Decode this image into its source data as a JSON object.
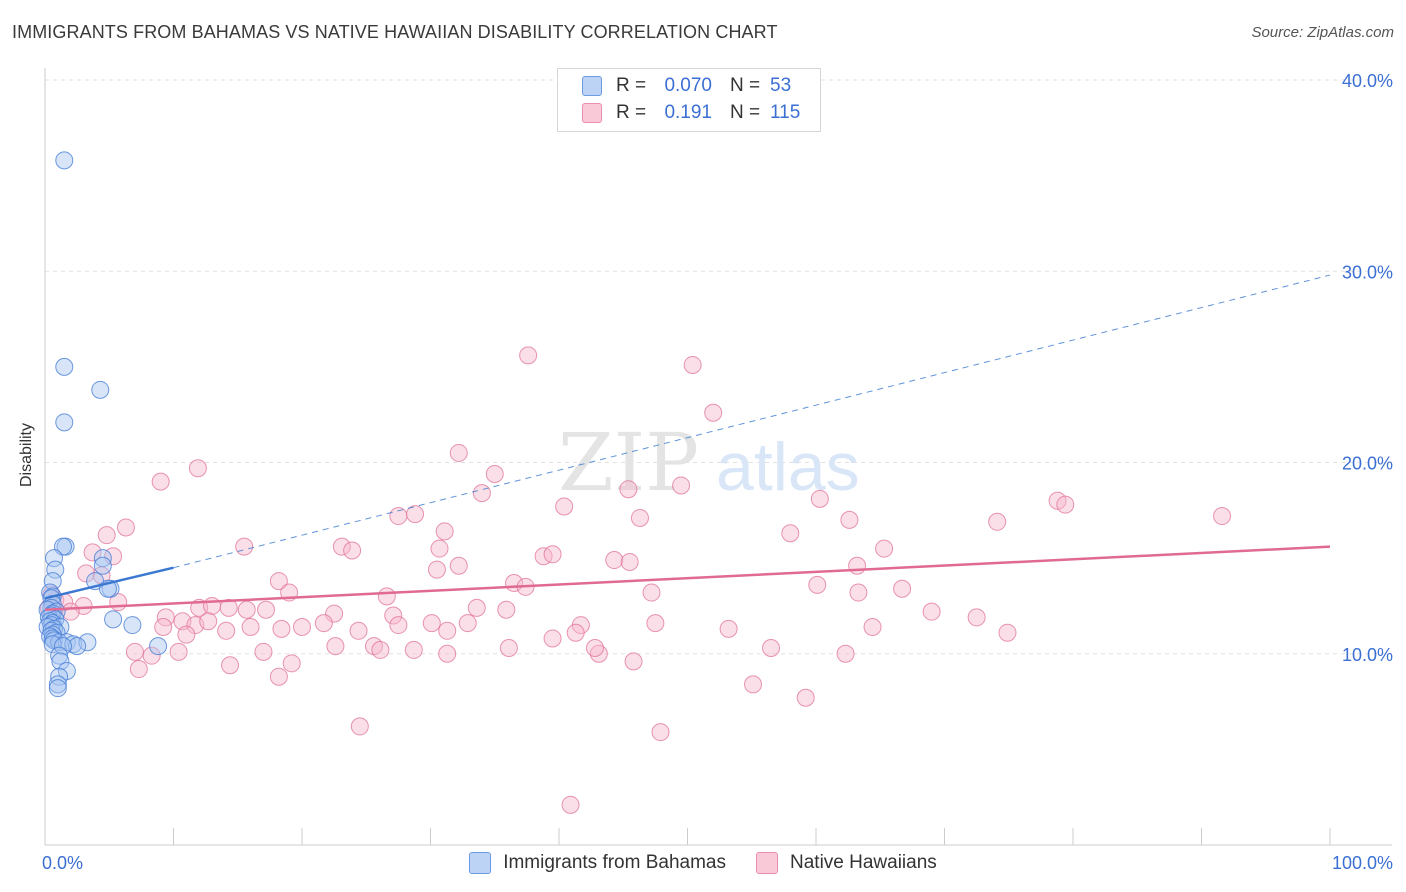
{
  "header": {
    "title": "IMMIGRANTS FROM BAHAMAS VS NATIVE HAWAIIAN DISABILITY CORRELATION CHART",
    "source": "Source: ZipAtlas.com"
  },
  "watermark": {
    "zip": "ZIP",
    "atlas": "atlas"
  },
  "legend": {
    "rows": [
      {
        "r_label": "R =",
        "r_value": "0.070",
        "n_label": "N =",
        "n_value": "53",
        "color": "#a9c6f2"
      },
      {
        "r_label": "R =",
        "r_value": "0.191",
        "n_label": "N =",
        "n_value": "115",
        "color": "#f7b8cb"
      }
    ]
  },
  "bottom_legend": {
    "series_a": "Immigrants from Bahamas",
    "series_b": "Native Hawaiians"
  },
  "chart_data": {
    "type": "scatter",
    "title": "IMMIGRANTS FROM BAHAMAS VS NATIVE HAWAIIAN DISABILITY CORRELATION CHART",
    "xlabel": "",
    "ylabel": "Disability",
    "xlim": [
      0,
      100
    ],
    "ylim": [
      0,
      40
    ],
    "x_tick_labels": [
      "0.0%",
      "100.0%"
    ],
    "y_ticks": [
      10,
      20,
      30,
      40
    ],
    "y_tick_labels": [
      "10.0%",
      "20.0%",
      "30.0%",
      "40.0%"
    ],
    "grid": true,
    "colors": {
      "bahamas_fill": "#a9c6f2",
      "bahamas_stroke": "#4a7fd6",
      "bahamas_line": "#3a78d1",
      "hawaiian_fill": "#f7b8cb",
      "hawaiian_stroke": "#e0729a",
      "hawaiian_line": "#e06a93",
      "axis_label": "#3b6fd4"
    },
    "series": [
      {
        "name": "Immigrants from Bahamas",
        "trend": {
          "x0": 0.0,
          "y0": 12.9,
          "x1": 10.0,
          "y1": 14.5,
          "dashed_to_x": 100.0,
          "dashed_to_y": 29.8
        },
        "points": [
          [
            1.5,
            35.8
          ],
          [
            1.5,
            25.0
          ],
          [
            1.5,
            22.1
          ],
          [
            4.3,
            23.8
          ],
          [
            1.6,
            15.6
          ],
          [
            1.4,
            15.6
          ],
          [
            0.7,
            15.0
          ],
          [
            4.5,
            15.0
          ],
          [
            0.8,
            14.4
          ],
          [
            4.5,
            14.6
          ],
          [
            0.6,
            13.8
          ],
          [
            3.9,
            13.8
          ],
          [
            5.1,
            13.4
          ],
          [
            4.9,
            13.4
          ],
          [
            0.4,
            13.2
          ],
          [
            0.6,
            13.0
          ],
          [
            0.5,
            12.9
          ],
          [
            0.6,
            12.6
          ],
          [
            0.5,
            12.4
          ],
          [
            0.2,
            12.3
          ],
          [
            0.9,
            12.2
          ],
          [
            0.6,
            12.1
          ],
          [
            0.5,
            12.0
          ],
          [
            0.3,
            11.9
          ],
          [
            0.8,
            11.8
          ],
          [
            0.4,
            11.7
          ],
          [
            0.6,
            11.6
          ],
          [
            0.5,
            11.5
          ],
          [
            0.2,
            11.4
          ],
          [
            1.2,
            11.4
          ],
          [
            0.7,
            11.3
          ],
          [
            0.5,
            11.2
          ],
          [
            0.9,
            11.1
          ],
          [
            0.6,
            11.0
          ],
          [
            0.4,
            10.9
          ],
          [
            0.6,
            10.8
          ],
          [
            0.7,
            10.7
          ],
          [
            1.1,
            10.6
          ],
          [
            1.7,
            10.6
          ],
          [
            0.6,
            10.5
          ],
          [
            2.2,
            10.5
          ],
          [
            3.3,
            10.6
          ],
          [
            2.5,
            10.4
          ],
          [
            1.4,
            10.4
          ],
          [
            5.3,
            11.8
          ],
          [
            6.8,
            11.5
          ],
          [
            8.8,
            10.4
          ],
          [
            1.1,
            9.9
          ],
          [
            1.2,
            9.6
          ],
          [
            1.7,
            9.1
          ],
          [
            1.1,
            8.8
          ],
          [
            1.0,
            8.4
          ],
          [
            1.0,
            8.2
          ]
        ]
      },
      {
        "name": "Native Hawaiians",
        "trend": {
          "x0": 0.0,
          "y0": 12.3,
          "x1": 100.0,
          "y1": 15.6
        },
        "points": [
          [
            37.6,
            25.6
          ],
          [
            50.4,
            25.1
          ],
          [
            52.0,
            22.6
          ],
          [
            11.9,
            19.7
          ],
          [
            32.2,
            20.5
          ],
          [
            9.0,
            19.0
          ],
          [
            35.0,
            19.4
          ],
          [
            34.0,
            18.4
          ],
          [
            45.4,
            18.6
          ],
          [
            49.5,
            18.8
          ],
          [
            60.3,
            18.1
          ],
          [
            78.8,
            18.0
          ],
          [
            79.4,
            17.8
          ],
          [
            40.4,
            17.7
          ],
          [
            27.5,
            17.2
          ],
          [
            28.8,
            17.3
          ],
          [
            46.3,
            17.1
          ],
          [
            62.6,
            17.0
          ],
          [
            74.1,
            16.9
          ],
          [
            91.6,
            17.2
          ],
          [
            6.3,
            16.6
          ],
          [
            4.8,
            16.2
          ],
          [
            31.1,
            16.4
          ],
          [
            58.0,
            16.3
          ],
          [
            15.5,
            15.6
          ],
          [
            23.1,
            15.6
          ],
          [
            23.9,
            15.4
          ],
          [
            30.7,
            15.5
          ],
          [
            65.3,
            15.5
          ],
          [
            3.7,
            15.3
          ],
          [
            5.3,
            15.1
          ],
          [
            38.8,
            15.1
          ],
          [
            39.5,
            15.2
          ],
          [
            44.3,
            14.9
          ],
          [
            45.5,
            14.8
          ],
          [
            3.2,
            14.2
          ],
          [
            4.4,
            14.1
          ],
          [
            32.2,
            14.6
          ],
          [
            30.5,
            14.4
          ],
          [
            63.2,
            14.6
          ],
          [
            18.2,
            13.8
          ],
          [
            36.5,
            13.7
          ],
          [
            37.4,
            13.5
          ],
          [
            60.1,
            13.6
          ],
          [
            66.7,
            13.4
          ],
          [
            19.0,
            13.2
          ],
          [
            26.6,
            13.0
          ],
          [
            47.2,
            13.2
          ],
          [
            63.3,
            13.2
          ],
          [
            0.5,
            13.1
          ],
          [
            0.8,
            12.8
          ],
          [
            1.5,
            12.7
          ],
          [
            5.7,
            12.7
          ],
          [
            3.0,
            12.5
          ],
          [
            2.0,
            12.2
          ],
          [
            0.7,
            12.3
          ],
          [
            0.3,
            12.4
          ],
          [
            12.0,
            12.4
          ],
          [
            13.0,
            12.5
          ],
          [
            14.3,
            12.4
          ],
          [
            15.7,
            12.3
          ],
          [
            17.2,
            12.3
          ],
          [
            22.5,
            12.1
          ],
          [
            27.1,
            12.0
          ],
          [
            33.6,
            12.4
          ],
          [
            35.9,
            12.3
          ],
          [
            72.5,
            11.9
          ],
          [
            69.0,
            12.2
          ],
          [
            9.4,
            11.9
          ],
          [
            10.7,
            11.7
          ],
          [
            11.7,
            11.5
          ],
          [
            12.7,
            11.7
          ],
          [
            16.0,
            11.4
          ],
          [
            18.4,
            11.3
          ],
          [
            20.0,
            11.4
          ],
          [
            21.7,
            11.6
          ],
          [
            24.4,
            11.2
          ],
          [
            27.5,
            11.5
          ],
          [
            30.1,
            11.6
          ],
          [
            31.3,
            11.2
          ],
          [
            32.9,
            11.6
          ],
          [
            41.7,
            11.5
          ],
          [
            47.5,
            11.6
          ],
          [
            53.2,
            11.3
          ],
          [
            64.4,
            11.4
          ],
          [
            74.9,
            11.1
          ],
          [
            9.2,
            11.4
          ],
          [
            11.0,
            11.0
          ],
          [
            14.1,
            11.2
          ],
          [
            22.6,
            10.4
          ],
          [
            25.6,
            10.4
          ],
          [
            26.1,
            10.2
          ],
          [
            28.7,
            10.2
          ],
          [
            31.3,
            10.0
          ],
          [
            39.5,
            10.8
          ],
          [
            41.3,
            11.1
          ],
          [
            43.1,
            10.0
          ],
          [
            45.8,
            9.6
          ],
          [
            56.5,
            10.3
          ],
          [
            62.3,
            10.0
          ],
          [
            7.0,
            10.1
          ],
          [
            8.3,
            9.9
          ],
          [
            10.4,
            10.1
          ],
          [
            14.4,
            9.4
          ],
          [
            17.0,
            10.1
          ],
          [
            19.2,
            9.5
          ],
          [
            7.3,
            9.2
          ],
          [
            18.2,
            8.8
          ],
          [
            36.1,
            10.3
          ],
          [
            42.8,
            10.3
          ],
          [
            55.1,
            8.4
          ],
          [
            59.2,
            7.7
          ],
          [
            24.5,
            6.2
          ],
          [
            47.9,
            5.9
          ],
          [
            40.9,
            2.1
          ]
        ]
      }
    ]
  }
}
